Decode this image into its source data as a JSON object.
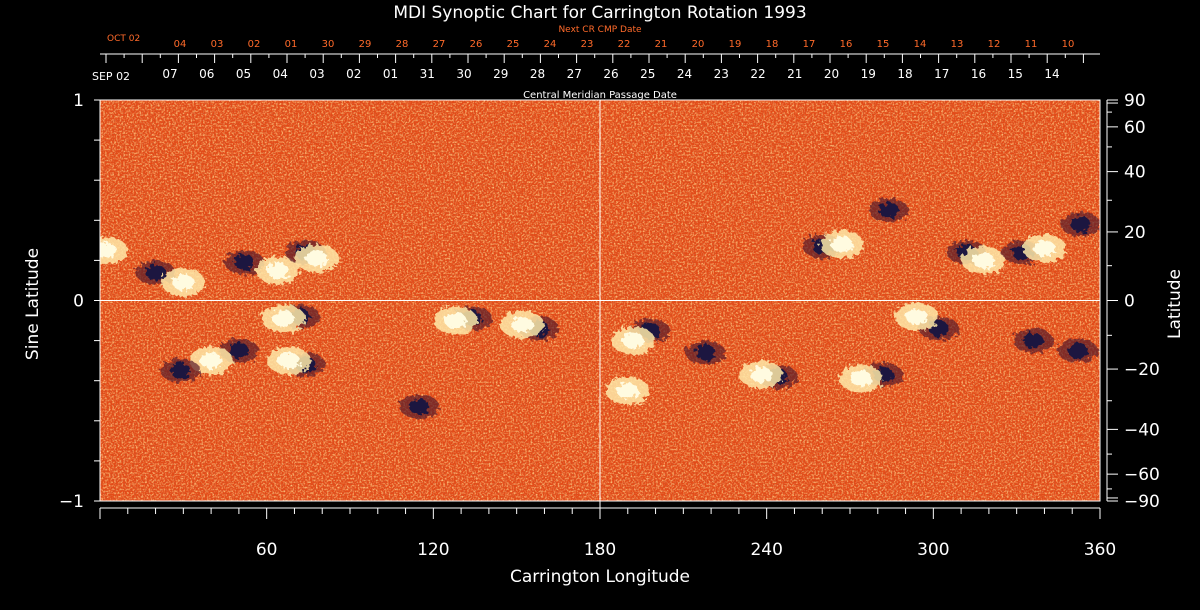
{
  "chart_data": {
    "type": "heatmap",
    "title": "MDI Synoptic Chart for Carrington Rotation 1993",
    "xlabel": "Carrington Longitude",
    "ylabel": "Sine Latitude",
    "ylabel_right": "Latitude",
    "xlim": [
      0,
      360
    ],
    "ylim": [
      -1,
      1
    ],
    "x_ticks": [
      60,
      120,
      180,
      240,
      300,
      360
    ],
    "y_ticks": [
      1,
      0,
      -1
    ],
    "y_tick_labels": [
      "1",
      "0",
      "−1"
    ],
    "lat_ticks": [
      90,
      60,
      40,
      20,
      0,
      -20,
      -40,
      -60,
      -90
    ],
    "lat_tick_labels": [
      "90",
      "60",
      "40",
      "20",
      "0",
      "−20",
      "−40",
      "−60",
      "−90"
    ],
    "colors": {
      "positive": "#fffbe0",
      "background": "#e34a17",
      "negative": "#1a1440"
    },
    "next_cr_axis": {
      "label": "Next CR CMP Date",
      "start_label": "OCT 02",
      "ticks": [
        "04",
        "03",
        "02",
        "01",
        "30",
        "29",
        "28",
        "27",
        "26",
        "25",
        "24",
        "23",
        "22",
        "21",
        "20",
        "19",
        "18",
        "17",
        "16",
        "15",
        "14",
        "13",
        "12",
        "11",
        "10"
      ]
    },
    "cmp_axis": {
      "label": "Central Meridian Passage Date",
      "start_label": "SEP 02",
      "ticks": [
        "07",
        "06",
        "05",
        "04",
        "03",
        "02",
        "01",
        "31",
        "30",
        "29",
        "28",
        "27",
        "26",
        "25",
        "24",
        "23",
        "22",
        "21",
        "20",
        "19",
        "18",
        "17",
        "16",
        "15",
        "14"
      ]
    },
    "active_regions": [
      {
        "lon": 2,
        "slat": 0.25,
        "polarity": "positive"
      },
      {
        "lon": 20,
        "slat": 0.14,
        "polarity": "negative"
      },
      {
        "lon": 30,
        "slat": 0.09,
        "polarity": "positive"
      },
      {
        "lon": 52,
        "slat": 0.19,
        "polarity": "negative"
      },
      {
        "lon": 64,
        "slat": 0.15,
        "polarity": "positive"
      },
      {
        "lon": 74,
        "slat": 0.24,
        "polarity": "negative"
      },
      {
        "lon": 78,
        "slat": 0.21,
        "polarity": "positive"
      },
      {
        "lon": 72,
        "slat": -0.08,
        "polarity": "negative"
      },
      {
        "lon": 66,
        "slat": -0.09,
        "polarity": "positive"
      },
      {
        "lon": 50,
        "slat": -0.25,
        "polarity": "negative"
      },
      {
        "lon": 40,
        "slat": -0.3,
        "polarity": "positive"
      },
      {
        "lon": 29,
        "slat": -0.35,
        "polarity": "negative"
      },
      {
        "lon": 74,
        "slat": -0.32,
        "polarity": "negative"
      },
      {
        "lon": 68,
        "slat": -0.3,
        "polarity": "positive"
      },
      {
        "lon": 134,
        "slat": -0.09,
        "polarity": "negative"
      },
      {
        "lon": 128,
        "slat": -0.1,
        "polarity": "positive"
      },
      {
        "lon": 158,
        "slat": -0.14,
        "polarity": "negative"
      },
      {
        "lon": 152,
        "slat": -0.12,
        "polarity": "positive"
      },
      {
        "lon": 115,
        "slat": -0.53,
        "polarity": "negative"
      },
      {
        "lon": 198,
        "slat": -0.15,
        "polarity": "negative"
      },
      {
        "lon": 192,
        "slat": -0.2,
        "polarity": "positive"
      },
      {
        "lon": 218,
        "slat": -0.26,
        "polarity": "negative"
      },
      {
        "lon": 244,
        "slat": -0.38,
        "polarity": "negative"
      },
      {
        "lon": 238,
        "slat": -0.37,
        "polarity": "positive"
      },
      {
        "lon": 190,
        "slat": -0.45,
        "polarity": "positive"
      },
      {
        "lon": 260,
        "slat": 0.27,
        "polarity": "negative"
      },
      {
        "lon": 267,
        "slat": 0.28,
        "polarity": "positive"
      },
      {
        "lon": 284,
        "slat": 0.45,
        "polarity": "negative"
      },
      {
        "lon": 302,
        "slat": -0.14,
        "polarity": "negative"
      },
      {
        "lon": 294,
        "slat": -0.08,
        "polarity": "positive"
      },
      {
        "lon": 282,
        "slat": -0.37,
        "polarity": "negative"
      },
      {
        "lon": 274,
        "slat": -0.39,
        "polarity": "positive"
      },
      {
        "lon": 312,
        "slat": 0.24,
        "polarity": "negative"
      },
      {
        "lon": 318,
        "slat": 0.2,
        "polarity": "positive"
      },
      {
        "lon": 332,
        "slat": 0.24,
        "polarity": "negative"
      },
      {
        "lon": 340,
        "slat": 0.26,
        "polarity": "positive"
      },
      {
        "lon": 353,
        "slat": 0.38,
        "polarity": "negative"
      },
      {
        "lon": 336,
        "slat": -0.2,
        "polarity": "negative"
      },
      {
        "lon": 352,
        "slat": -0.25,
        "polarity": "negative"
      }
    ]
  }
}
